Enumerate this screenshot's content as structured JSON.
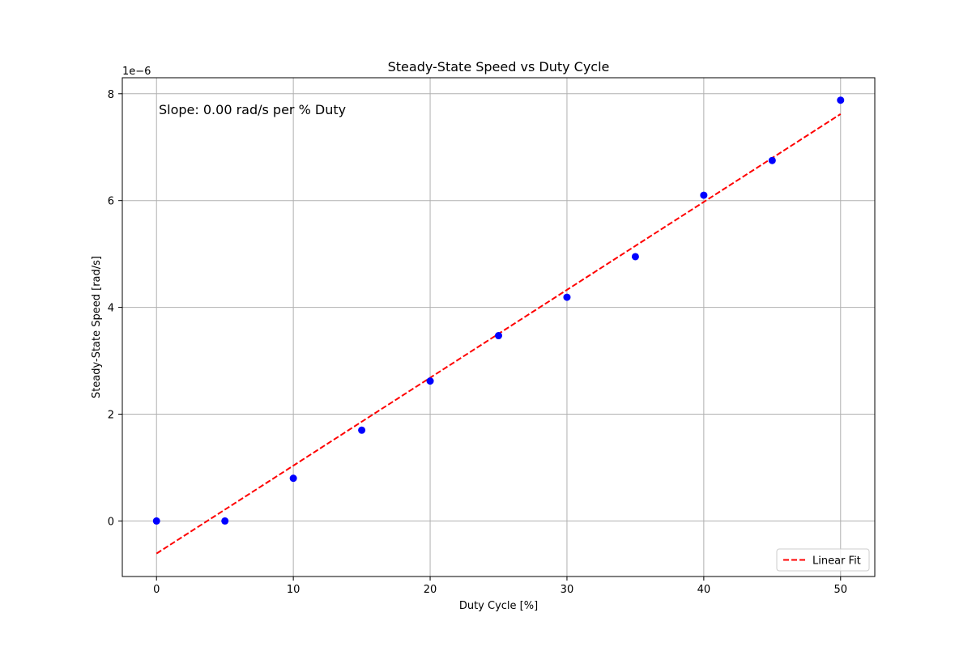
{
  "chart_data": {
    "type": "scatter",
    "title": "Steady-State Speed vs Duty Cycle",
    "xlabel": "Duty Cycle [%]",
    "ylabel": "Steady-State Speed [rad/s]",
    "y_offset_label": "1e−6",
    "annotation": "Slope: 0.00 rad/s per % Duty",
    "xlim": [
      -2.5,
      52.5
    ],
    "ylim": [
      -1.04,
      8.3
    ],
    "x_ticks": [
      0,
      10,
      20,
      30,
      40,
      50
    ],
    "y_ticks": [
      0,
      2,
      4,
      6,
      8
    ],
    "grid": true,
    "legend_position": "lower-right",
    "series": [
      {
        "kind": "scatter",
        "color": "#0000ff",
        "x": [
          0,
          5,
          10,
          15,
          20,
          25,
          30,
          35,
          40,
          45,
          50
        ],
        "y": [
          0.0,
          0.0,
          0.8,
          1.7,
          2.62,
          3.47,
          4.19,
          4.95,
          6.1,
          6.75,
          7.88
        ]
      },
      {
        "kind": "line",
        "name": "Linear Fit",
        "style": "dashed",
        "color": "#ff0000",
        "x": [
          0,
          50
        ],
        "y": [
          -0.61,
          7.62
        ]
      }
    ]
  }
}
